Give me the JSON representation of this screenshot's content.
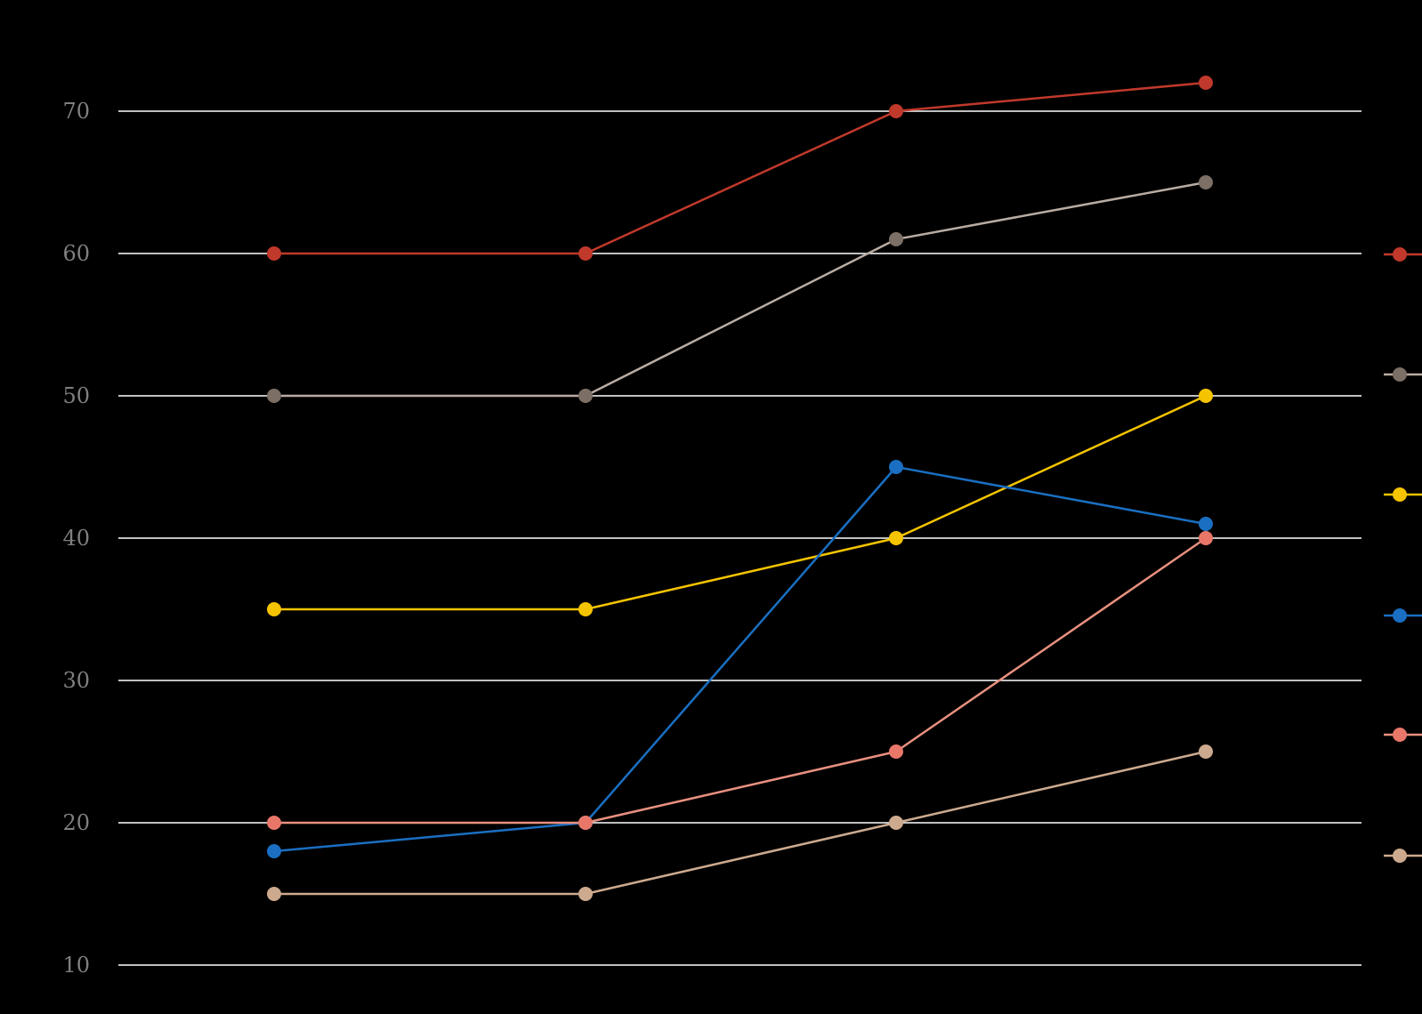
{
  "chart_data": {
    "type": "line",
    "title": "",
    "xlabel": "",
    "ylabel": "",
    "x": [
      1,
      2,
      3,
      4
    ],
    "ylim": [
      10,
      70
    ],
    "yticks": [
      10,
      20,
      30,
      40,
      50,
      60,
      70
    ],
    "grid": true,
    "legend_position": "right",
    "series": [
      {
        "color": "#c0392b",
        "line_color": "#c0392b",
        "values": [
          60,
          60,
          70,
          72
        ]
      },
      {
        "color": "#7b6f66",
        "line_color": "#b8aca3",
        "values": [
          50,
          50,
          61,
          65
        ]
      },
      {
        "color": "#f5c400",
        "line_color": "#f5c400",
        "values": [
          35,
          35,
          40,
          50
        ]
      },
      {
        "color": "#1a6fc2",
        "line_color": "#1a6fc2",
        "values": [
          18,
          20,
          45,
          41
        ]
      },
      {
        "color": "#e8776a",
        "line_color": "#e8907f",
        "values": [
          20,
          20,
          25,
          40
        ]
      },
      {
        "color": "#cdaa8e",
        "line_color": "#cdaa8e",
        "values": [
          15,
          15,
          20,
          25
        ]
      }
    ]
  }
}
